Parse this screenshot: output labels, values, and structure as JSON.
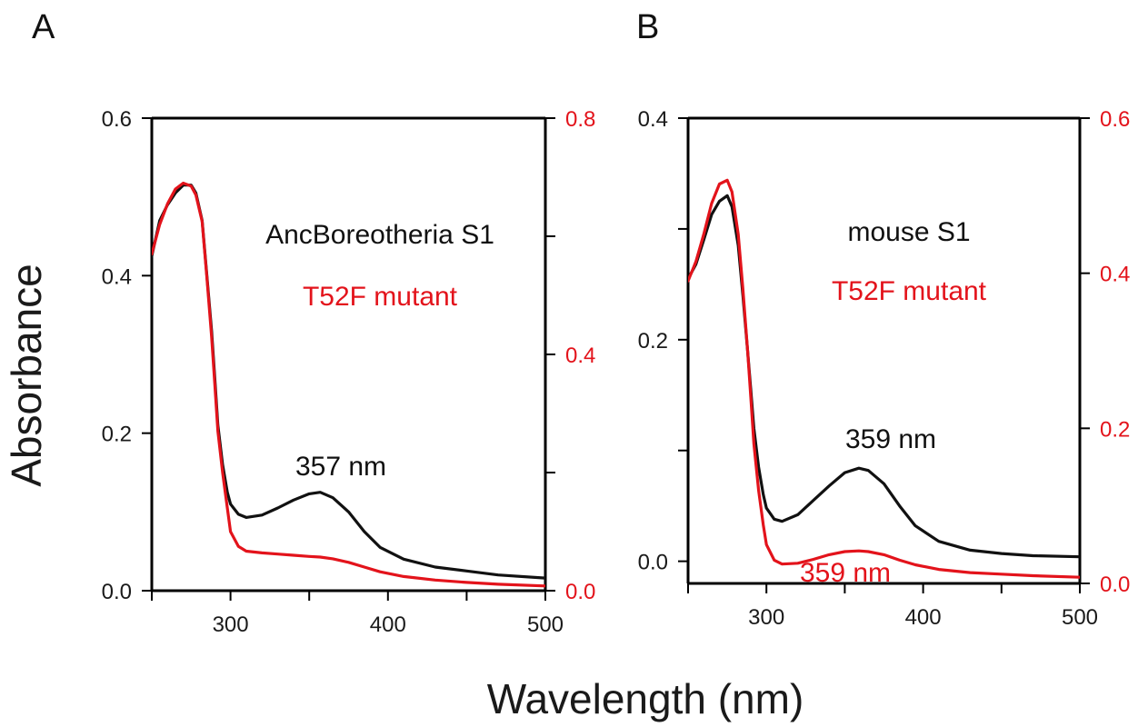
{
  "figure": {
    "ylabel": "Absorbance",
    "xlabel": "Wavelength (nm)",
    "colors": {
      "black": "#111111",
      "red": "#e3131b"
    }
  },
  "chart_data": [
    {
      "type": "line",
      "panel_label": "A",
      "xlabel": "Wavelength (nm)",
      "ylabel": "Absorbance",
      "xlim": [
        250,
        500
      ],
      "xticks": [
        300,
        400,
        500
      ],
      "ylim_left": [
        0.0,
        0.6
      ],
      "yticks_left": [
        "0.0",
        "0.2",
        "0.4",
        "0.6"
      ],
      "ylim_right": [
        0.0,
        0.8
      ],
      "yticks_right": [
        "0.0",
        "0.4",
        "0.8"
      ],
      "annotations": [
        {
          "text": "AncBoreotheria S1",
          "color": "#111111"
        },
        {
          "text": "T52F mutant",
          "color": "#e3131b"
        },
        {
          "text": "357 nm",
          "color": "#111111"
        }
      ],
      "series": [
        {
          "color": "#111111",
          "axis": "left",
          "x": [
            250,
            255,
            260,
            265,
            270,
            275,
            278,
            282,
            285,
            288,
            290,
            292,
            295,
            298,
            300,
            305,
            310,
            320,
            330,
            340,
            350,
            357,
            365,
            375,
            385,
            395,
            410,
            430,
            450,
            470,
            500
          ],
          "y": [
            0.425,
            0.47,
            0.49,
            0.505,
            0.515,
            0.515,
            0.505,
            0.47,
            0.4,
            0.33,
            0.27,
            0.21,
            0.16,
            0.125,
            0.11,
            0.097,
            0.093,
            0.096,
            0.105,
            0.115,
            0.123,
            0.125,
            0.118,
            0.1,
            0.075,
            0.055,
            0.04,
            0.03,
            0.025,
            0.02,
            0.016
          ]
        },
        {
          "color": "#e3131b",
          "axis": "right",
          "x": [
            250,
            255,
            260,
            265,
            270,
            275,
            278,
            282,
            285,
            288,
            290,
            292,
            295,
            298,
            300,
            305,
            310,
            320,
            330,
            340,
            350,
            357,
            365,
            375,
            385,
            395,
            410,
            430,
            450,
            470,
            500
          ],
          "y": [
            0.57,
            0.62,
            0.655,
            0.68,
            0.69,
            0.685,
            0.67,
            0.625,
            0.53,
            0.43,
            0.35,
            0.27,
            0.2,
            0.14,
            0.1,
            0.075,
            0.067,
            0.064,
            0.062,
            0.06,
            0.058,
            0.057,
            0.054,
            0.048,
            0.04,
            0.032,
            0.024,
            0.018,
            0.014,
            0.011,
            0.008
          ]
        }
      ]
    },
    {
      "type": "line",
      "panel_label": "B",
      "xlabel": "Wavelength (nm)",
      "ylabel": "Absorbance",
      "xlim": [
        250,
        500
      ],
      "xticks": [
        300,
        400,
        500
      ],
      "ylim_left": [
        -0.02,
        0.4
      ],
      "yticks_left": [
        "0.0",
        "0.2",
        "0.4"
      ],
      "ylim_right": [
        0.0,
        0.6
      ],
      "yticks_right": [
        "0.0",
        "0.2",
        "0.4",
        "0.6"
      ],
      "annotations": [
        {
          "text": "mouse S1",
          "color": "#111111"
        },
        {
          "text": "T52F mutant",
          "color": "#e3131b"
        },
        {
          "text": "359 nm",
          "color": "#111111"
        },
        {
          "text": "359 nm",
          "color": "#e3131b"
        }
      ],
      "series": [
        {
          "color": "#111111",
          "axis": "left",
          "x": [
            250,
            255,
            260,
            265,
            270,
            275,
            278,
            282,
            285,
            288,
            290,
            292,
            295,
            298,
            300,
            305,
            310,
            320,
            330,
            340,
            350,
            359,
            365,
            375,
            385,
            395,
            410,
            430,
            450,
            470,
            500
          ],
          "y": [
            0.255,
            0.268,
            0.29,
            0.313,
            0.325,
            0.33,
            0.32,
            0.285,
            0.24,
            0.19,
            0.155,
            0.12,
            0.085,
            0.06,
            0.048,
            0.038,
            0.036,
            0.042,
            0.055,
            0.068,
            0.08,
            0.084,
            0.082,
            0.07,
            0.05,
            0.032,
            0.018,
            0.01,
            0.007,
            0.005,
            0.004
          ]
        },
        {
          "color": "#e3131b",
          "axis": "right",
          "x": [
            250,
            255,
            260,
            265,
            270,
            275,
            278,
            282,
            285,
            288,
            290,
            292,
            295,
            298,
            300,
            305,
            310,
            320,
            330,
            340,
            350,
            359,
            365,
            375,
            385,
            395,
            410,
            430,
            450,
            470,
            500
          ],
          "y": [
            0.39,
            0.415,
            0.45,
            0.49,
            0.515,
            0.52,
            0.505,
            0.45,
            0.38,
            0.3,
            0.24,
            0.18,
            0.12,
            0.075,
            0.05,
            0.03,
            0.025,
            0.026,
            0.031,
            0.037,
            0.041,
            0.042,
            0.041,
            0.037,
            0.03,
            0.024,
            0.018,
            0.014,
            0.012,
            0.01,
            0.008
          ]
        }
      ]
    }
  ]
}
